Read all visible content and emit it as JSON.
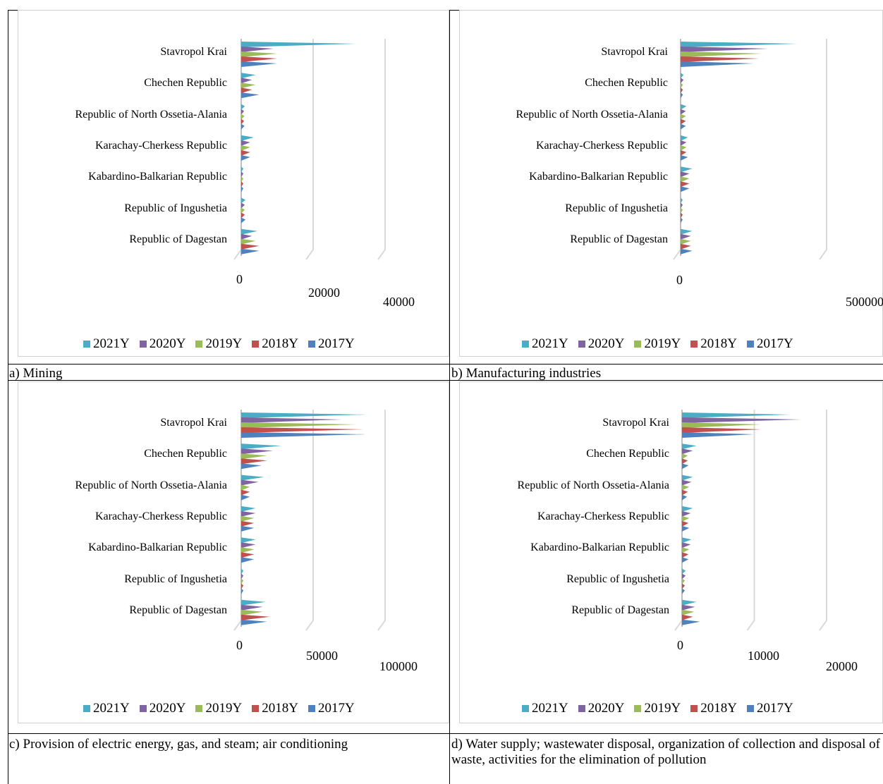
{
  "colors": {
    "2021Y": "#4bacc6",
    "2020Y": "#8064a2",
    "2019Y": "#9bbb59",
    "2018Y": "#c0504d",
    "2017Y": "#4f81bd"
  },
  "captions": {
    "a": "a) Mining",
    "b": "b) Manufacturing industries",
    "c": "c) Provision of electric energy, gas, and steam; air conditioning",
    "d": "d) Water supply; wastewater disposal, organization of collection and disposal of waste, activities for the elimination of pollution"
  },
  "chart_data": [
    {
      "id": "a",
      "type": "bar",
      "categories": [
        "Stavropol Krai",
        "Chechen Republic",
        "Republic of North Ossetia-Alania",
        "Karachay-Cherkess Republic",
        "Kabardino-Balkarian Republic",
        "Republic of Ingushetia",
        "Republic of Dagestan"
      ],
      "series": [
        {
          "name": "2021Y",
          "values": [
            32000,
            4000,
            1000,
            3500,
            300,
            1200,
            4500
          ]
        },
        {
          "name": "2020Y",
          "values": [
            9000,
            3000,
            800,
            2500,
            300,
            1000,
            3000
          ]
        },
        {
          "name": "2019Y",
          "values": [
            10000,
            4000,
            900,
            2500,
            300,
            1000,
            4000
          ]
        },
        {
          "name": "2018Y",
          "values": [
            10000,
            3000,
            800,
            2500,
            300,
            1000,
            5000
          ]
        },
        {
          "name": "2017Y",
          "values": [
            10000,
            5000,
            900,
            2500,
            300,
            1200,
            5000
          ]
        }
      ],
      "ticks": [
        0,
        20000,
        40000
      ],
      "xlim": [
        0,
        40000
      ],
      "legend": "bottom"
    },
    {
      "id": "b",
      "type": "bar",
      "categories": [
        "Stavropol Krai",
        "Chechen Republic",
        "Republic of North Ossetia-Alania",
        "Karachay-Cherkess Republic",
        "Kabardino-Balkarian Republic",
        "Republic of Ingushetia",
        "Republic of Dagestan"
      ],
      "series": [
        {
          "name": "2021Y",
          "values": [
            400000,
            10000,
            20000,
            25000,
            40000,
            2000,
            40000
          ]
        },
        {
          "name": "2020Y",
          "values": [
            300000,
            10000,
            18000,
            20000,
            30000,
            2000,
            35000
          ]
        },
        {
          "name": "2019Y",
          "values": [
            280000,
            8000,
            18000,
            20000,
            30000,
            2000,
            35000
          ]
        },
        {
          "name": "2018Y",
          "values": [
            270000,
            8000,
            18000,
            20000,
            30000,
            2000,
            35000
          ]
        },
        {
          "name": "2017Y",
          "values": [
            250000,
            8000,
            18000,
            25000,
            30000,
            2000,
            40000
          ]
        }
      ],
      "ticks": [
        0,
        500000
      ],
      "xlim": [
        0,
        500000
      ],
      "legend": "bottom"
    },
    {
      "id": "c",
      "type": "bar",
      "categories": [
        "Stavropol Krai",
        "Chechen Republic",
        "Republic of North Ossetia-Alania",
        "Karachay-Cherkess Republic",
        "Kabardino-Balkarian Republic",
        "Republic of Ingushetia",
        "Republic of Dagestan"
      ],
      "series": [
        {
          "name": "2021Y",
          "values": [
            87000,
            28000,
            16000,
            10000,
            10000,
            1500,
            17000
          ]
        },
        {
          "name": "2020Y",
          "values": [
            70000,
            22000,
            12000,
            10000,
            10000,
            1500,
            15000
          ]
        },
        {
          "name": "2019Y",
          "values": [
            80000,
            18000,
            6000,
            9000,
            9000,
            1500,
            15000
          ]
        },
        {
          "name": "2018Y",
          "values": [
            85000,
            18000,
            6000,
            9000,
            9000,
            1500,
            20000
          ]
        },
        {
          "name": "2017Y",
          "values": [
            87000,
            14000,
            6000,
            9000,
            9000,
            1500,
            18000
          ]
        }
      ],
      "ticks": [
        0,
        50000,
        100000
      ],
      "xlim": [
        0,
        100000
      ],
      "legend": "bottom"
    },
    {
      "id": "d",
      "type": "bar",
      "categories": [
        "Stavropol Krai",
        "Chechen Republic",
        "Republic of North Ossetia-Alania",
        "Karachay-Cherkess Republic",
        "Kabardino-Balkarian Republic",
        "Republic of Ingushetia",
        "Republic of Dagestan"
      ],
      "series": [
        {
          "name": "2021Y",
          "values": [
            15000,
            2000,
            1500,
            1500,
            1300,
            500,
            2000
          ]
        },
        {
          "name": "2020Y",
          "values": [
            16500,
            1500,
            1300,
            1200,
            1200,
            500,
            1800
          ]
        },
        {
          "name": "2019Y",
          "values": [
            11000,
            800,
            1000,
            1000,
            1000,
            400,
            1700
          ]
        },
        {
          "name": "2018Y",
          "values": [
            11000,
            800,
            800,
            900,
            900,
            400,
            1500
          ]
        },
        {
          "name": "2017Y",
          "values": [
            10000,
            900,
            700,
            1000,
            900,
            400,
            2500
          ]
        }
      ],
      "ticks": [
        0,
        10000,
        20000
      ],
      "xlim": [
        0,
        20000
      ],
      "legend": "bottom"
    }
  ]
}
